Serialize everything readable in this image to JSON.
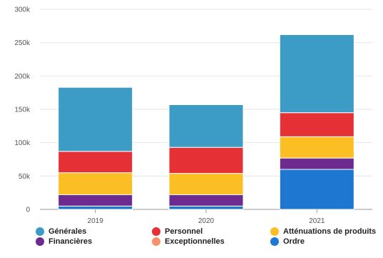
{
  "chart_data": {
    "type": "bar",
    "stacked": true,
    "categories": [
      "2019",
      "2020",
      "2021"
    ],
    "ylim": [
      0,
      300000
    ],
    "yticks": [
      0,
      50000,
      100000,
      150000,
      200000,
      250000,
      300000
    ],
    "ytick_labels": [
      "0",
      "50k",
      "100k",
      "150k",
      "200k",
      "250k",
      "300k"
    ],
    "grid": true,
    "legend_position": "bottom",
    "series": [
      {
        "name": "Ordre",
        "color": "#1e78d2",
        "values": [
          5000,
          5000,
          60000
        ]
      },
      {
        "name": "Exceptionnelles",
        "color": "#f7916d",
        "values": [
          0,
          0,
          0
        ]
      },
      {
        "name": "Financières",
        "color": "#6d2a8f",
        "values": [
          17000,
          17000,
          17000
        ]
      },
      {
        "name": "Atténuations de produits",
        "color": "#fbbf24",
        "values": [
          33000,
          32000,
          32000
        ]
      },
      {
        "name": "Personnel",
        "color": "#e53036",
        "values": [
          32000,
          39000,
          36000
        ]
      },
      {
        "name": "Générales",
        "color": "#3d9cc6",
        "values": [
          96000,
          64000,
          117000
        ]
      }
    ]
  },
  "legend": {
    "items": [
      {
        "label": "Générales",
        "color": "#3d9cc6"
      },
      {
        "label": "Personnel",
        "color": "#e53036"
      },
      {
        "label": "Atténuations de produits",
        "color": "#fbbf24"
      },
      {
        "label": "Financières",
        "color": "#6d2a8f"
      },
      {
        "label": "Exceptionnelles",
        "color": "#f7916d"
      },
      {
        "label": "Ordre",
        "color": "#1e78d2"
      }
    ]
  }
}
